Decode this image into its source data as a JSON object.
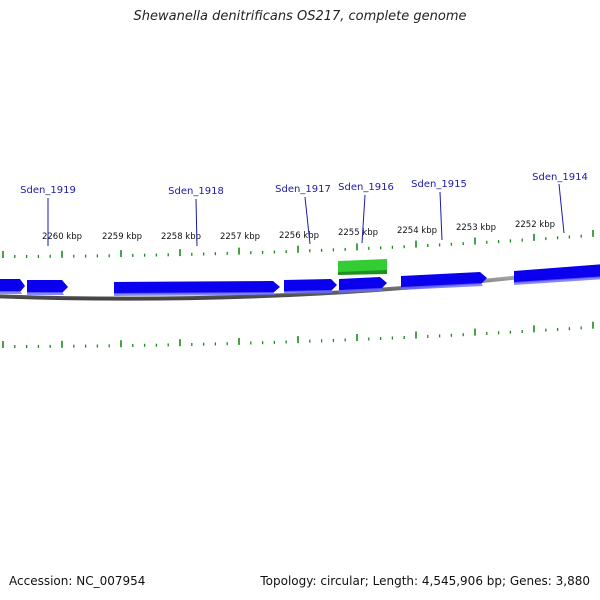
{
  "title": "Shewanella denitrificans OS217, complete genome",
  "accession": "Accession: NC_007954",
  "summary": "Topology: circular; Length: 4,545,906 bp; Genes: 3,880",
  "colors": {
    "gene_forward": "#0a00ee",
    "gene_highlight": "#33cc33",
    "backbone": "#888888",
    "tick": "#1a8a1a",
    "gene_label": "#1a1aaa",
    "position_label": "#111111"
  },
  "position_labels": [
    "2260 kbp",
    "2259 kbp",
    "2258 kbp",
    "2257 kbp",
    "2256 kbp",
    "2255 kbp",
    "2254 kbp",
    "2253 kbp",
    "2252 kbp"
  ],
  "gene_labels": [
    "Sden_1919",
    "Sden_1918",
    "Sden_1917",
    "Sden_1916",
    "Sden_1915",
    "Sden_1914"
  ],
  "genes": [
    {
      "strand": "forward",
      "highlighted": false
    },
    {
      "strand": "forward",
      "highlighted": false
    },
    {
      "strand": "forward",
      "highlighted": false
    },
    {
      "strand": "forward",
      "highlighted": false
    },
    {
      "strand": "forward",
      "highlighted": false
    },
    {
      "strand": "forward",
      "highlighted": true
    },
    {
      "strand": "forward",
      "highlighted": false
    },
    {
      "strand": "forward",
      "highlighted": false
    }
  ]
}
